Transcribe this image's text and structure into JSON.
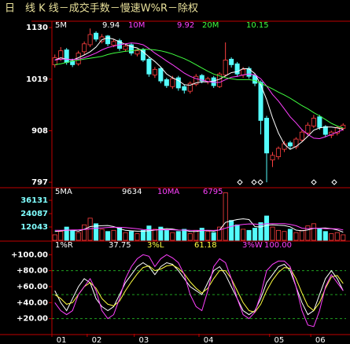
{
  "title": "日　线 K 线－成交手数－慢速W%R－除权",
  "chart_data": [
    {
      "type": "candlestick",
      "ylim": [
        787,
        1142
      ],
      "yticks": [
        797,
        908,
        1019,
        1130
      ],
      "up_color": "#ff4040",
      "down_color": "#54fcfc",
      "open": [
        1050,
        1062,
        1082,
        1058,
        1052,
        1078,
        1093,
        1118,
        1100,
        1112,
        1092,
        1102,
        1083,
        1093,
        1073,
        1083,
        1062,
        1028,
        1042,
        1018,
        1003,
        1022,
        1003,
        993,
        1008,
        1027,
        1013,
        1022,
        1003,
        1028,
        1062,
        1052,
        1028,
        1042,
        1027,
        1012,
        935,
        845,
        852,
        868,
        882,
        873,
        888,
        903,
        918,
        938,
        917,
        898,
        903,
        913
      ],
      "high": [
        1072,
        1088,
        1086,
        1063,
        1080,
        1100,
        1128,
        1122,
        1116,
        1114,
        1104,
        1106,
        1094,
        1096,
        1084,
        1086,
        1066,
        1045,
        1046,
        1022,
        1026,
        1026,
        1008,
        1014,
        1030,
        1030,
        1024,
        1026,
        1034,
        1098,
        1066,
        1056,
        1045,
        1046,
        1030,
        1016,
        940,
        862,
        874,
        886,
        886,
        894,
        910,
        926,
        942,
        942,
        920,
        908,
        918,
        924
      ],
      "low": [
        1044,
        1058,
        1050,
        1045,
        1048,
        1072,
        1088,
        1100,
        1096,
        1090,
        1088,
        1080,
        1078,
        1070,
        1068,
        1056,
        1024,
        1022,
        1010,
        1000,
        998,
        994,
        988,
        988,
        1004,
        1010,
        1008,
        1000,
        1000,
        1024,
        1044,
        1024,
        1022,
        1020,
        1004,
        900,
        797,
        830,
        846,
        862,
        868,
        868,
        884,
        898,
        914,
        910,
        894,
        892,
        898,
        908
      ],
      "close": [
        1065,
        1080,
        1055,
        1050,
        1075,
        1095,
        1115,
        1105,
        1110,
        1095,
        1100,
        1085,
        1090,
        1075,
        1080,
        1060,
        1030,
        1040,
        1015,
        1005,
        1020,
        1000,
        995,
        1010,
        1025,
        1015,
        1020,
        1005,
        1030,
        1060,
        1050,
        1030,
        1040,
        1025,
        1010,
        930,
        860,
        855,
        870,
        880,
        875,
        890,
        905,
        920,
        935,
        915,
        900,
        905,
        915,
        920
      ],
      "series": [
        {
          "name": "5M",
          "color": "#ffffff",
          "legend_value": "9.94",
          "values": [
            1060,
            1065,
            1062,
            1060,
            1065,
            1071,
            1078,
            1088,
            1104,
            1108,
            1105,
            1099,
            1094,
            1089,
            1086,
            1078,
            1067,
            1057,
            1045,
            1030,
            1022,
            1016,
            1007,
            1006,
            1011,
            1013,
            1013,
            1015,
            1019,
            1026,
            1033,
            1035,
            1042,
            1041,
            1031,
            1007,
            975,
            936,
            903,
            879,
            868,
            874,
            884,
            896,
            909,
            914,
            916,
            916,
            914,
            911
          ]
        },
        {
          "name": "10M",
          "color": "#ff40ff",
          "legend_value": "9.92",
          "values": [
            1060,
            1062,
            1062,
            1061,
            1062,
            1065,
            1070,
            1075,
            1082,
            1087,
            1090,
            1093,
            1095,
            1097,
            1096,
            1093,
            1085,
            1075,
            1067,
            1058,
            1050,
            1041,
            1032,
            1025,
            1020,
            1017,
            1014,
            1012,
            1012,
            1018,
            1023,
            1025,
            1028,
            1030,
            1028,
            1020,
            1004,
            986,
            972,
            955,
            938,
            925,
            910,
            900,
            892,
            891,
            895,
            900,
            905,
            910
          ]
        },
        {
          "name": "20M",
          "color": "#40ff40",
          "legend_value": "10.15",
          "values": [
            1050,
            1052,
            1055,
            1058,
            1060,
            1062,
            1064,
            1066,
            1068,
            1072,
            1075,
            1077,
            1079,
            1080,
            1082,
            1083,
            1083,
            1082,
            1080,
            1077,
            1073,
            1068,
            1063,
            1057,
            1050,
            1043,
            1036,
            1030,
            1026,
            1022,
            1020,
            1018,
            1018,
            1018,
            1016,
            1010,
            1004,
            998,
            991,
            985,
            978,
            970,
            962,
            955,
            947,
            940,
            932,
            924,
            918,
            914
          ]
        }
      ]
    },
    {
      "type": "bar",
      "ylim": [
        0,
        46800
      ],
      "yticks": [
        12043,
        24087,
        36131
      ],
      "values": [
        5000,
        8000,
        12000,
        9000,
        7000,
        14000,
        20000,
        15000,
        10000,
        8000,
        9000,
        11000,
        7000,
        8000,
        6000,
        9000,
        13000,
        10000,
        12000,
        9000,
        7000,
        8000,
        10000,
        6000,
        9000,
        11000,
        8000,
        7000,
        12000,
        43000,
        18000,
        14000,
        10000,
        9000,
        11000,
        16000,
        22000,
        12000,
        9000,
        8000,
        10000,
        7000,
        9000,
        13000,
        15000,
        11000,
        8000,
        6000,
        7000,
        5000
      ],
      "series": [
        {
          "name": "5MA",
          "color": "#ffffff",
          "legend_value": "9634",
          "values": [
            8000,
            8500,
            9000,
            9200,
            8200,
            10000,
            12400,
            13000,
            13200,
            13400,
            12400,
            10600,
            9000,
            8600,
            8200,
            8200,
            8600,
            9200,
            10000,
            10600,
            10200,
            9200,
            9200,
            8000,
            8000,
            8800,
            8800,
            8200,
            9400,
            16200,
            17600,
            18800,
            19400,
            18800,
            12400,
            12000,
            13600,
            14000,
            13600,
            13400,
            12200,
            9200,
            8600,
            9400,
            10800,
            11000,
            11200,
            10600,
            9400,
            7400
          ]
        },
        {
          "name": "10MA",
          "color": "#ff40ff",
          "legend_value": "6795",
          "values": [
            9000,
            9000,
            9200,
            9400,
            9500,
            9800,
            10400,
            11000,
            11200,
            11600,
            11800,
            11800,
            11500,
            11000,
            10500,
            9800,
            9500,
            9400,
            9500,
            9600,
            9500,
            9300,
            9200,
            9000,
            8900,
            9000,
            9000,
            8900,
            9300,
            11000,
            12600,
            13600,
            14400,
            14800,
            14700,
            14200,
            15000,
            15000,
            15100,
            15000,
            14400,
            13200,
            11000,
            10600,
            11000,
            11000,
            10400,
            10400,
            10500,
            9400
          ]
        }
      ]
    },
    {
      "type": "line",
      "ylim": [
        1,
        116
      ],
      "yticks": [
        {
          "value": 20,
          "label": "+20.00"
        },
        {
          "value": 40,
          "label": "+40.00"
        },
        {
          "value": 60,
          "label": "+60.00"
        },
        {
          "value": 80,
          "label": "+80.00"
        },
        {
          "value": 100,
          "label": "+100.00"
        }
      ],
      "gridlines": [
        20,
        50,
        80
      ],
      "categories": [
        "01",
        null,
        null,
        null,
        null,
        null,
        "02",
        null,
        null,
        null,
        null,
        null,
        null,
        null,
        "03",
        null,
        null,
        null,
        null,
        null,
        null,
        null,
        null,
        null,
        null,
        "04",
        null,
        null,
        null,
        null,
        null,
        null,
        null,
        null,
        null,
        null,
        null,
        "05",
        null,
        null,
        null,
        null,
        null,
        null,
        "06",
        null,
        null,
        null,
        null,
        null
      ],
      "series": [
        {
          "name": "1%R",
          "color": "#ffffff",
          "legend_value": "37.75",
          "values": [
            55,
            40,
            30,
            45,
            60,
            70,
            65,
            45,
            35,
            30,
            35,
            50,
            65,
            75,
            85,
            90,
            85,
            75,
            85,
            90,
            88,
            80,
            70,
            60,
            55,
            50,
            65,
            80,
            85,
            75,
            60,
            45,
            30,
            25,
            30,
            45,
            65,
            75,
            85,
            88,
            80,
            60,
            40,
            25,
            30,
            50,
            70,
            80,
            70,
            55
          ]
        },
        {
          "name": "3%L",
          "color": "#ffff40",
          "legend_value": "61.18",
          "values": [
            50,
            45,
            38,
            40,
            50,
            60,
            65,
            58,
            45,
            38,
            36,
            42,
            55,
            66,
            76,
            84,
            86,
            80,
            82,
            86,
            87,
            83,
            76,
            66,
            58,
            52,
            58,
            70,
            80,
            80,
            70,
            55,
            40,
            30,
            28,
            38,
            55,
            68,
            78,
            84,
            83,
            70,
            52,
            36,
            30,
            40,
            58,
            72,
            74,
            64
          ]
        },
        {
          "name": "3%W",
          "color": "#ff40ff",
          "legend_value": "100.00",
          "values": [
            40,
            30,
            25,
            30,
            50,
            60,
            70,
            55,
            30,
            20,
            25,
            45,
            70,
            85,
            95,
            100,
            98,
            85,
            95,
            100,
            96,
            90,
            75,
            50,
            35,
            30,
            55,
            85,
            95,
            90,
            70,
            45,
            25,
            20,
            28,
            50,
            80,
            88,
            92,
            92,
            85,
            60,
            30,
            12,
            10,
            30,
            60,
            75,
            65,
            55
          ]
        }
      ]
    }
  ]
}
